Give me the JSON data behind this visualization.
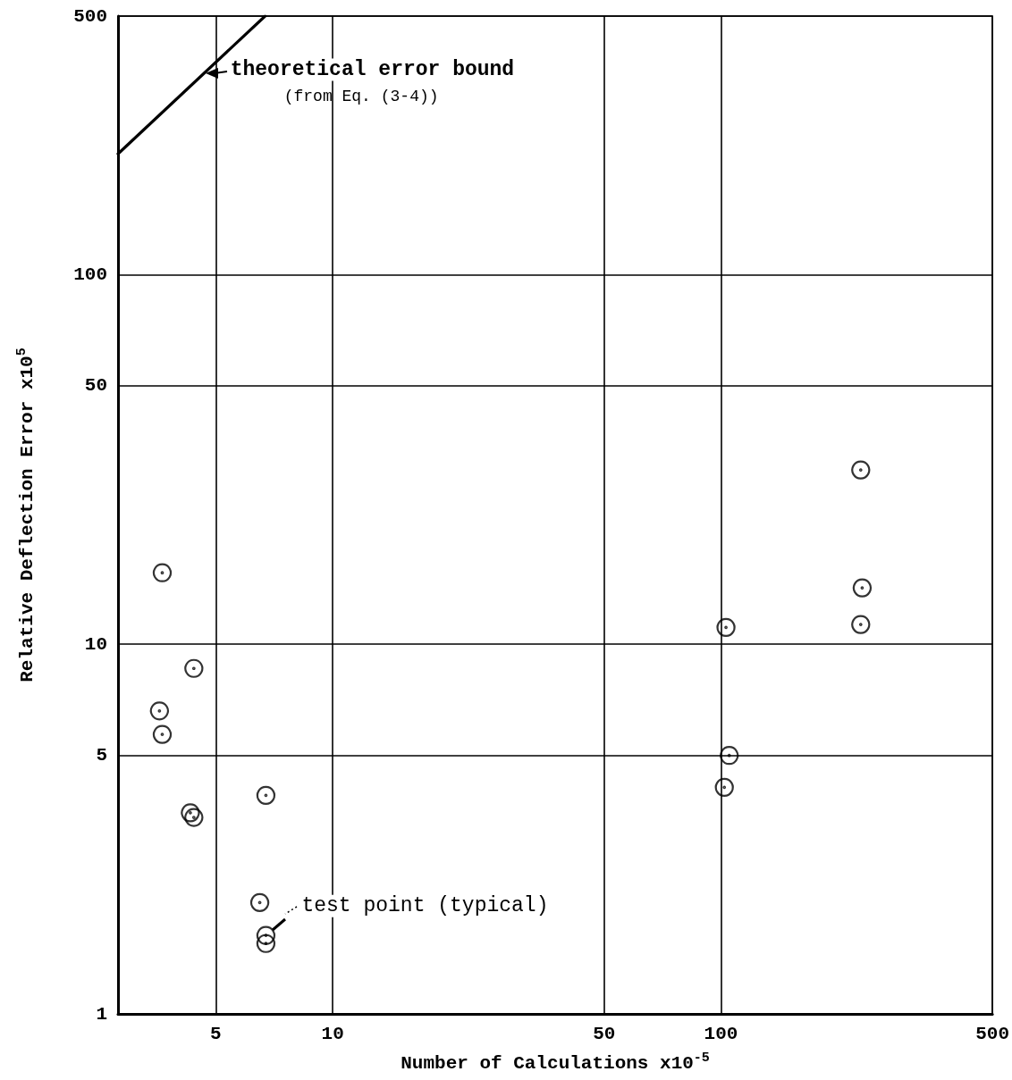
{
  "chart_data": {
    "type": "scatter",
    "xlabel": "Number of Calculations x10$^{-5}$",
    "ylabel": "Relative Deflection Error x10$^{5}$",
    "log": "xy",
    "xlim": [
      2.8,
      500
    ],
    "ylim": [
      1,
      500
    ],
    "xticks": [
      5,
      10,
      50,
      100,
      500
    ],
    "yticks": [
      1,
      5,
      10,
      50,
      100,
      500
    ],
    "grid": true,
    "marker": "circle",
    "series": [
      {
        "color": "#000000",
        "x": [
          3.64,
          4.39,
          3.58,
          3.64,
          4.3,
          4.39,
          6.73,
          6.49,
          6.73,
          6.73,
          103,
          105,
          102,
          229,
          231,
          229
        ],
        "values": [
          15.6,
          8.6,
          6.6,
          5.7,
          3.5,
          3.4,
          3.9,
          2.0,
          1.63,
          1.55,
          11.1,
          5.0,
          4.1,
          29.6,
          14.2,
          11.3
        ]
      },
      {
        "type": "line",
        "color": "#000000",
        "marker": "none",
        "x": [
          2.8,
          6.7
        ],
        "values": [
          212,
          500
        ]
      }
    ],
    "annotations": [
      {
        "text": "theoretical error bound",
        "x": 4.7,
        "y": 350
      },
      "(from Eq. (3-4))",
      {
        "text": "test point (typical)",
        "x": 6.73,
        "y": 1.63
      }
    ]
  }
}
